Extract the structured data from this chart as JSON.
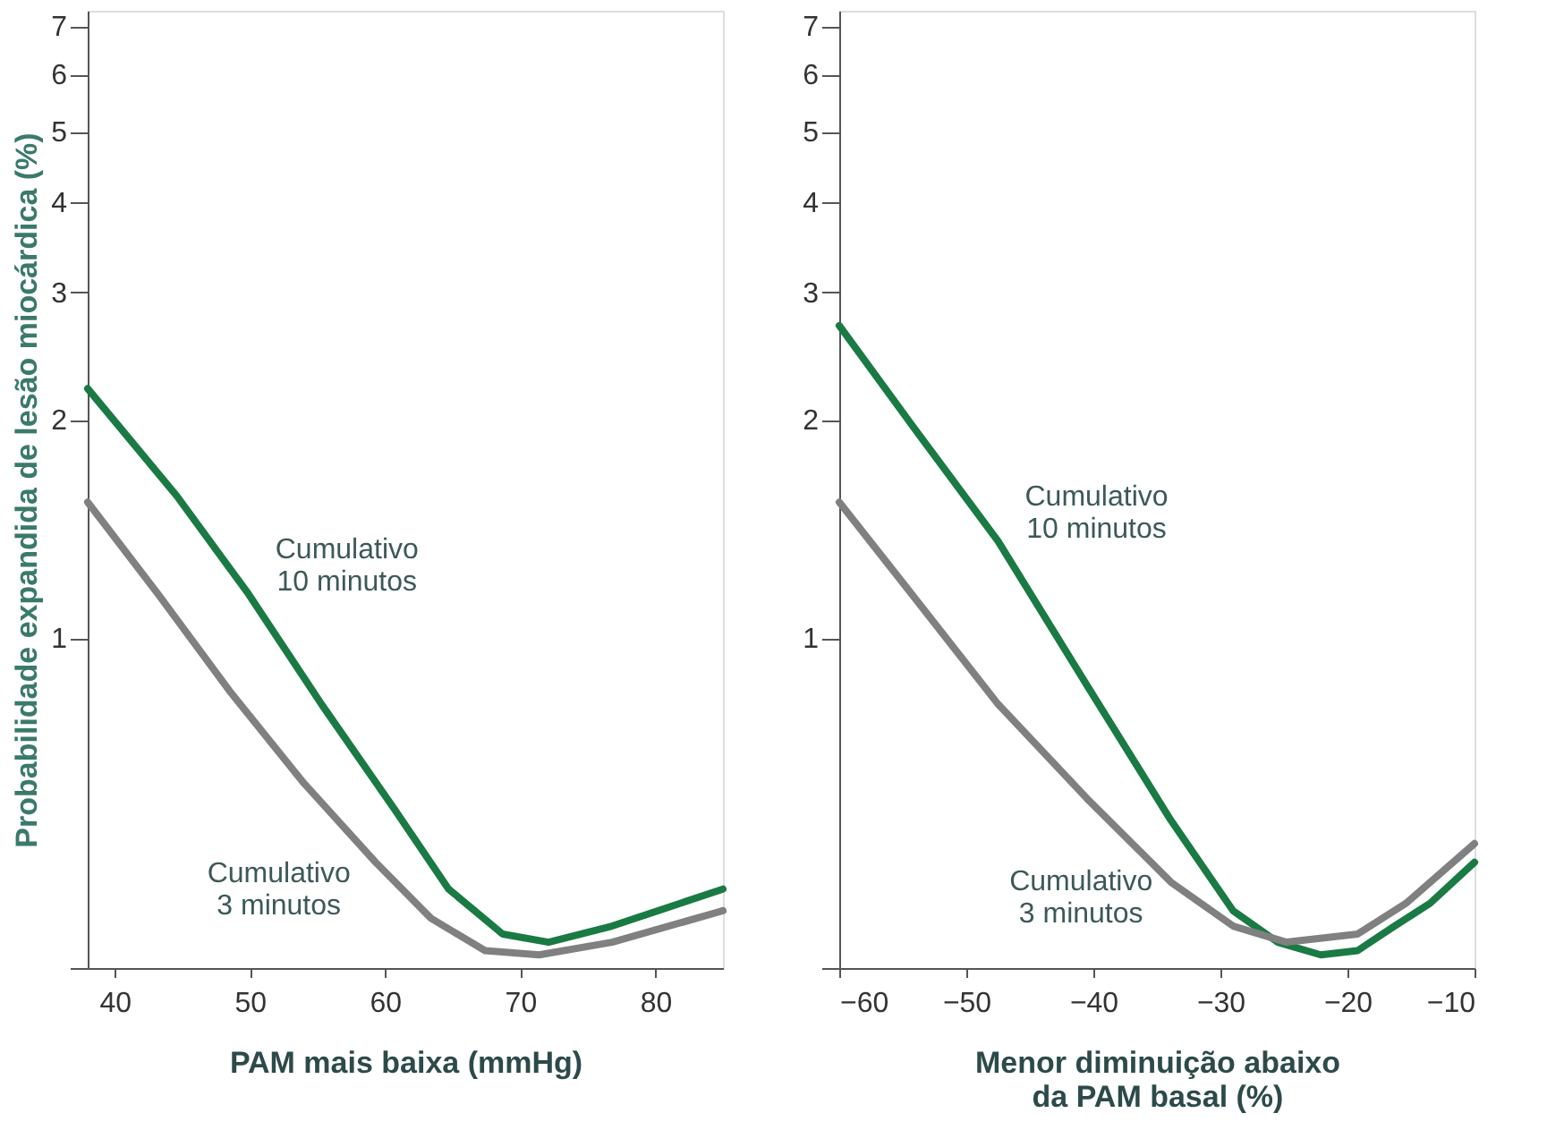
{
  "chart_data": [
    {
      "type": "line",
      "xlabel": "PAM mais baixa (mmHg)",
      "ylabel": "Probabilidade expandida de lesão miocárdica (%)",
      "log": "y",
      "grid": false,
      "marker": "none",
      "line_style": "solid",
      "xlim": [
        38,
        85
      ],
      "xticks": [
        40,
        50,
        60,
        70,
        80
      ],
      "ylim": [
        0.35,
        7.35
      ],
      "yticks": [
        {
          "value": 0.35,
          "label": null
        },
        1,
        2,
        3,
        4,
        5,
        6,
        7
      ],
      "series": [
        {
          "name": "Cumulativo\n10 minutos",
          "color": "#1a7a44",
          "x": [
            38,
            44.6,
            49.9,
            55.3,
            60.7,
            64.7,
            68.7,
            72.1,
            76.8,
            85
          ],
          "values": [
            2.21,
            1.57,
            1.15,
            0.81,
            0.58,
            0.45,
            0.39,
            0.38,
            0.4,
            0.45
          ]
        },
        {
          "name": "Cumulativo\n3 minutos",
          "color": "#808080",
          "x": [
            38,
            43.2,
            48.6,
            54,
            59.3,
            63.4,
            67.4,
            71.4,
            76.8,
            85
          ],
          "values": [
            1.54,
            1.15,
            0.84,
            0.63,
            0.49,
            0.41,
            0.37,
            0.365,
            0.38,
            0.42
          ]
        }
      ]
    },
    {
      "type": "line",
      "xlabel": "Menor diminuição abaixo\nda PAM basal (%)",
      "log": "y",
      "grid": false,
      "marker": "none",
      "line_style": "solid",
      "xlim": [
        -60,
        -10
      ],
      "xticks": [
        -60,
        -50,
        -40,
        -30,
        -20,
        -10
      ],
      "ylim": [
        0.35,
        7.35
      ],
      "yticks": [
        {
          "value": 0.35,
          "label": null
        },
        1,
        2,
        3,
        4,
        5,
        6,
        7
      ],
      "series": [
        {
          "name": "Cumulativo\n10 minutos",
          "color": "#1a7a44",
          "x": [
            -60,
            -54.3,
            -47.5,
            -40.5,
            -33.9,
            -29,
            -25.5,
            -22.1,
            -19.2,
            -16.3,
            -13.5,
            -10
          ],
          "values": [
            2.7,
            1.97,
            1.36,
            0.86,
            0.56,
            0.42,
            0.38,
            0.365,
            0.37,
            0.4,
            0.43,
            0.49
          ]
        },
        {
          "name": "Cumulativo\n3 minutos",
          "color": "#808080",
          "x": [
            -60,
            -54.3,
            -47.5,
            -40.5,
            -33.9,
            -29,
            -24.8,
            -19.2,
            -15.4,
            -10
          ],
          "values": [
            1.54,
            1.15,
            0.81,
            0.6,
            0.46,
            0.4,
            0.38,
            0.39,
            0.43,
            0.52
          ]
        }
      ]
    }
  ]
}
